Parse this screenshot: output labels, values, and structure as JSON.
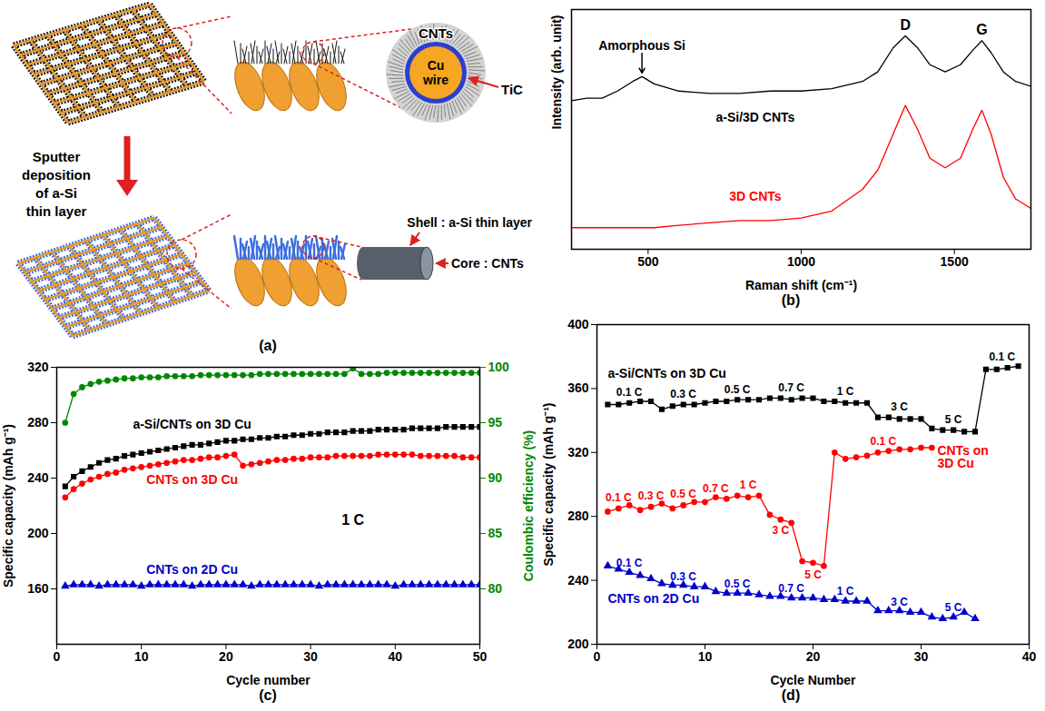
{
  "diagram": {
    "panel": "(a)",
    "cross_section": {
      "outer": "CNTs",
      "ring": "TiC",
      "core": "Cu wire"
    },
    "process": "Sputter deposition of a-Si thin layer",
    "core_shell": {
      "shell": "Shell : a-Si thin layer",
      "core": "Core : CNTs"
    }
  },
  "chart_data": [
    {
      "type": "line",
      "panel": "(b)",
      "xlabel": "Raman shift (cm⁻¹)",
      "ylabel": "Intensity (arb. unit)",
      "x": [
        250,
        300,
        350,
        400,
        450,
        480,
        520,
        600,
        700,
        800,
        900,
        1000,
        1100,
        1200,
        1250,
        1300,
        1340,
        1380,
        1420,
        1470,
        1520,
        1560,
        1590,
        1620,
        1660,
        1700,
        1750
      ],
      "xlim": [
        250,
        1750
      ],
      "xticks": [
        500,
        1000,
        1500
      ],
      "ylim": [
        0,
        100
      ],
      "yticks": [],
      "tick_labels": "x",
      "peaks": [
        {
          "label": "D",
          "x": 1340
        },
        {
          "label": "G",
          "x": 1590
        }
      ],
      "annotations": [
        {
          "text": "Amorphous Si",
          "x": 480
        }
      ],
      "series": [
        {
          "name": "a-Si/3D CNTs",
          "color": "#000000",
          "values": [
            62,
            63,
            63,
            66,
            70,
            72,
            69,
            66,
            65,
            65,
            66,
            66,
            67,
            70,
            74,
            84,
            89,
            84,
            77,
            74,
            77,
            83,
            87,
            82,
            74,
            70,
            68
          ]
        },
        {
          "name": "3D CNTs",
          "color": "#ff0000",
          "values": [
            9,
            9,
            9,
            9,
            9,
            9,
            9,
            10,
            11,
            12,
            12,
            13,
            16,
            25,
            33,
            48,
            60,
            50,
            38,
            34,
            38,
            50,
            58,
            48,
            30,
            21,
            17
          ]
        }
      ]
    },
    {
      "type": "line",
      "panel": "(c)",
      "xlabel": "Cycle number",
      "ylabel": "Specific capacity (mAh g⁻¹)",
      "y2label": "Coulombic efficiency (%)",
      "x": [
        1,
        2,
        3,
        4,
        5,
        6,
        7,
        8,
        9,
        10,
        11,
        12,
        13,
        14,
        15,
        16,
        17,
        18,
        19,
        20,
        21,
        22,
        23,
        24,
        25,
        26,
        27,
        28,
        29,
        30,
        31,
        32,
        33,
        34,
        35,
        36,
        37,
        38,
        39,
        40,
        41,
        42,
        43,
        44,
        45,
        46,
        47,
        48,
        49,
        50
      ],
      "xlim": [
        0,
        50
      ],
      "xticks": [
        0,
        10,
        20,
        30,
        40,
        50
      ],
      "ylim": [
        120,
        320
      ],
      "yticks": [
        160,
        200,
        240,
        280,
        320
      ],
      "y2lim": [
        75,
        100
      ],
      "y2ticks": [
        80,
        85,
        90,
        95,
        100
      ],
      "annotations": [
        "1 C"
      ],
      "series": [
        {
          "name": "a-Si/CNTs on 3D Cu",
          "color": "#000000",
          "marker": "square",
          "values": [
            234,
            241,
            245,
            248,
            251,
            253,
            254,
            256,
            257,
            258,
            259,
            260,
            261,
            262,
            263,
            264,
            264,
            265,
            266,
            267,
            267,
            268,
            268,
            269,
            269,
            270,
            270,
            271,
            271,
            272,
            272,
            273,
            273,
            273,
            274,
            274,
            274,
            275,
            275,
            275,
            275,
            276,
            276,
            276,
            276,
            277,
            277,
            277,
            277,
            277
          ]
        },
        {
          "name": "CNTs on 3D Cu",
          "color": "#ff0000",
          "marker": "circle",
          "values": [
            226,
            232,
            236,
            239,
            241,
            243,
            244,
            246,
            247,
            248,
            249,
            250,
            251,
            252,
            253,
            253,
            254,
            255,
            255,
            256,
            257,
            249,
            250,
            251,
            252,
            253,
            253,
            254,
            254,
            255,
            255,
            255,
            256,
            256,
            256,
            256,
            256,
            257,
            257,
            257,
            257,
            257,
            256,
            256,
            256,
            256,
            256,
            255,
            255,
            255
          ]
        },
        {
          "name": "CNTs on 2D Cu",
          "color": "#0000cc",
          "marker": "triangle",
          "values": [
            162,
            163,
            163,
            163,
            162,
            163,
            163,
            163,
            163,
            162,
            163,
            163,
            163,
            163,
            163,
            162,
            163,
            163,
            163,
            163,
            163,
            163,
            162,
            163,
            163,
            163,
            163,
            163,
            163,
            163,
            162,
            163,
            163,
            163,
            163,
            163,
            163,
            163,
            163,
            162,
            163,
            163,
            163,
            163,
            163,
            163,
            163,
            163,
            163,
            163
          ]
        },
        {
          "color": "#008800",
          "marker": "circle",
          "axis": "y2",
          "values": [
            95,
            97.6,
            98.2,
            98.5,
            98.7,
            98.8,
            98.9,
            99.0,
            99.0,
            99.1,
            99.1,
            99.1,
            99.2,
            99.2,
            99.2,
            99.2,
            99.3,
            99.3,
            99.3,
            99.3,
            99.3,
            99.3,
            99.3,
            99.4,
            99.4,
            99.4,
            99.4,
            99.4,
            99.4,
            99.4,
            99.4,
            99.4,
            99.4,
            99.4,
            99.9,
            99.4,
            99.4,
            99.4,
            99.5,
            99.5,
            99.5,
            99.5,
            99.5,
            99.5,
            99.5,
            99.5,
            99.5,
            99.5,
            99.5,
            99.5
          ]
        }
      ]
    },
    {
      "type": "line",
      "panel": "(d)",
      "xlabel": "Cycle Number",
      "ylabel": "Specific capacity (mAh g⁻¹)",
      "xlim": [
        0,
        40
      ],
      "xticks": [
        0,
        10,
        20,
        30,
        40
      ],
      "ylim": [
        200,
        400
      ],
      "yticks": [
        200,
        240,
        280,
        320,
        360,
        400
      ],
      "series": [
        {
          "name": "a-Si/CNTs on 3D Cu",
          "color": "#000000",
          "marker": "square",
          "x": [
            1,
            2,
            3,
            4,
            5,
            6,
            7,
            8,
            9,
            10,
            11,
            12,
            13,
            14,
            15,
            16,
            17,
            18,
            19,
            20,
            21,
            22,
            23,
            24,
            25,
            26,
            27,
            28,
            29,
            30,
            31,
            32,
            33,
            34,
            35,
            36,
            37,
            38,
            39
          ],
          "values": [
            350,
            350,
            351,
            352,
            352,
            347,
            349,
            350,
            350,
            351,
            352,
            352,
            353,
            353,
            353,
            354,
            354,
            353,
            354,
            354,
            352,
            352,
            351,
            351,
            351,
            342,
            342,
            341,
            341,
            341,
            335,
            334,
            334,
            333,
            333,
            372,
            372,
            373,
            374
          ],
          "rate_labels": [
            {
              "label": "0.1 C",
              "cycles": [
                1,
                5
              ]
            },
            {
              "label": "0.3 C",
              "cycles": [
                6,
                10
              ]
            },
            {
              "label": "0.5 C",
              "cycles": [
                11,
                15
              ]
            },
            {
              "label": "0.7 C",
              "cycles": [
                16,
                20
              ]
            },
            {
              "label": "1 C",
              "cycles": [
                21,
                25
              ]
            },
            {
              "label": "3 C",
              "cycles": [
                26,
                30
              ]
            },
            {
              "label": "5 C",
              "cycles": [
                31,
                35
              ]
            },
            {
              "label": "0.1 C",
              "cycles": [
                36,
                39
              ]
            }
          ]
        },
        {
          "name": "CNTs on 3D Cu",
          "color": "#ff0000",
          "marker": "circle",
          "x": [
            1,
            2,
            3,
            4,
            5,
            6,
            7,
            8,
            9,
            10,
            11,
            12,
            13,
            14,
            15,
            16,
            17,
            18,
            19,
            20,
            21,
            22,
            23,
            24,
            25,
            26,
            27,
            28,
            29,
            30,
            31
          ],
          "values": [
            283,
            285,
            287,
            284,
            286,
            288,
            285,
            287,
            289,
            289,
            292,
            291,
            293,
            292,
            293,
            281,
            278,
            276,
            252,
            251,
            249,
            320,
            316,
            317,
            318,
            320,
            321,
            322,
            322,
            323,
            323
          ],
          "rate_labels": [
            {
              "label": "0.1 C",
              "cycles": [
                1,
                3
              ]
            },
            {
              "label": "0.3 C",
              "cycles": [
                4,
                6
              ]
            },
            {
              "label": "0.5 C",
              "cycles": [
                7,
                9
              ]
            },
            {
              "label": "0.7 C",
              "cycles": [
                10,
                12
              ]
            },
            {
              "label": "1 C",
              "cycles": [
                13,
                15
              ]
            },
            {
              "label": "3 C",
              "cycles": [
                16,
                18
              ]
            },
            {
              "label": "5 C",
              "cycles": [
                19,
                21
              ]
            },
            {
              "label": "0.1 C",
              "cycles": [
                22,
                31
              ]
            }
          ]
        },
        {
          "name": "CNTs on 2D Cu",
          "color": "#0000cc",
          "marker": "triangle",
          "x": [
            1,
            2,
            3,
            4,
            5,
            6,
            7,
            8,
            9,
            10,
            11,
            12,
            13,
            14,
            15,
            16,
            17,
            18,
            19,
            20,
            21,
            22,
            23,
            24,
            25,
            26,
            27,
            28,
            29,
            30,
            31,
            32,
            33,
            34,
            35
          ],
          "values": [
            249,
            247,
            245,
            243,
            241,
            238,
            237,
            237,
            236,
            236,
            233,
            232,
            232,
            232,
            231,
            230,
            230,
            229,
            229,
            229,
            228,
            228,
            227,
            227,
            227,
            221,
            221,
            221,
            220,
            220,
            217,
            216,
            217,
            220,
            216
          ],
          "rate_labels": [
            {
              "label": "0.1 C",
              "cycles": [
                1,
                5
              ]
            },
            {
              "label": "0.3 C",
              "cycles": [
                6,
                10
              ]
            },
            {
              "label": "0.5 C",
              "cycles": [
                11,
                15
              ]
            },
            {
              "label": "0.7 C",
              "cycles": [
                16,
                20
              ]
            },
            {
              "label": "1 C",
              "cycles": [
                21,
                25
              ]
            },
            {
              "label": "3 C",
              "cycles": [
                26,
                30
              ]
            },
            {
              "label": "5 C",
              "cycles": [
                31,
                35
              ]
            }
          ]
        }
      ]
    }
  ]
}
